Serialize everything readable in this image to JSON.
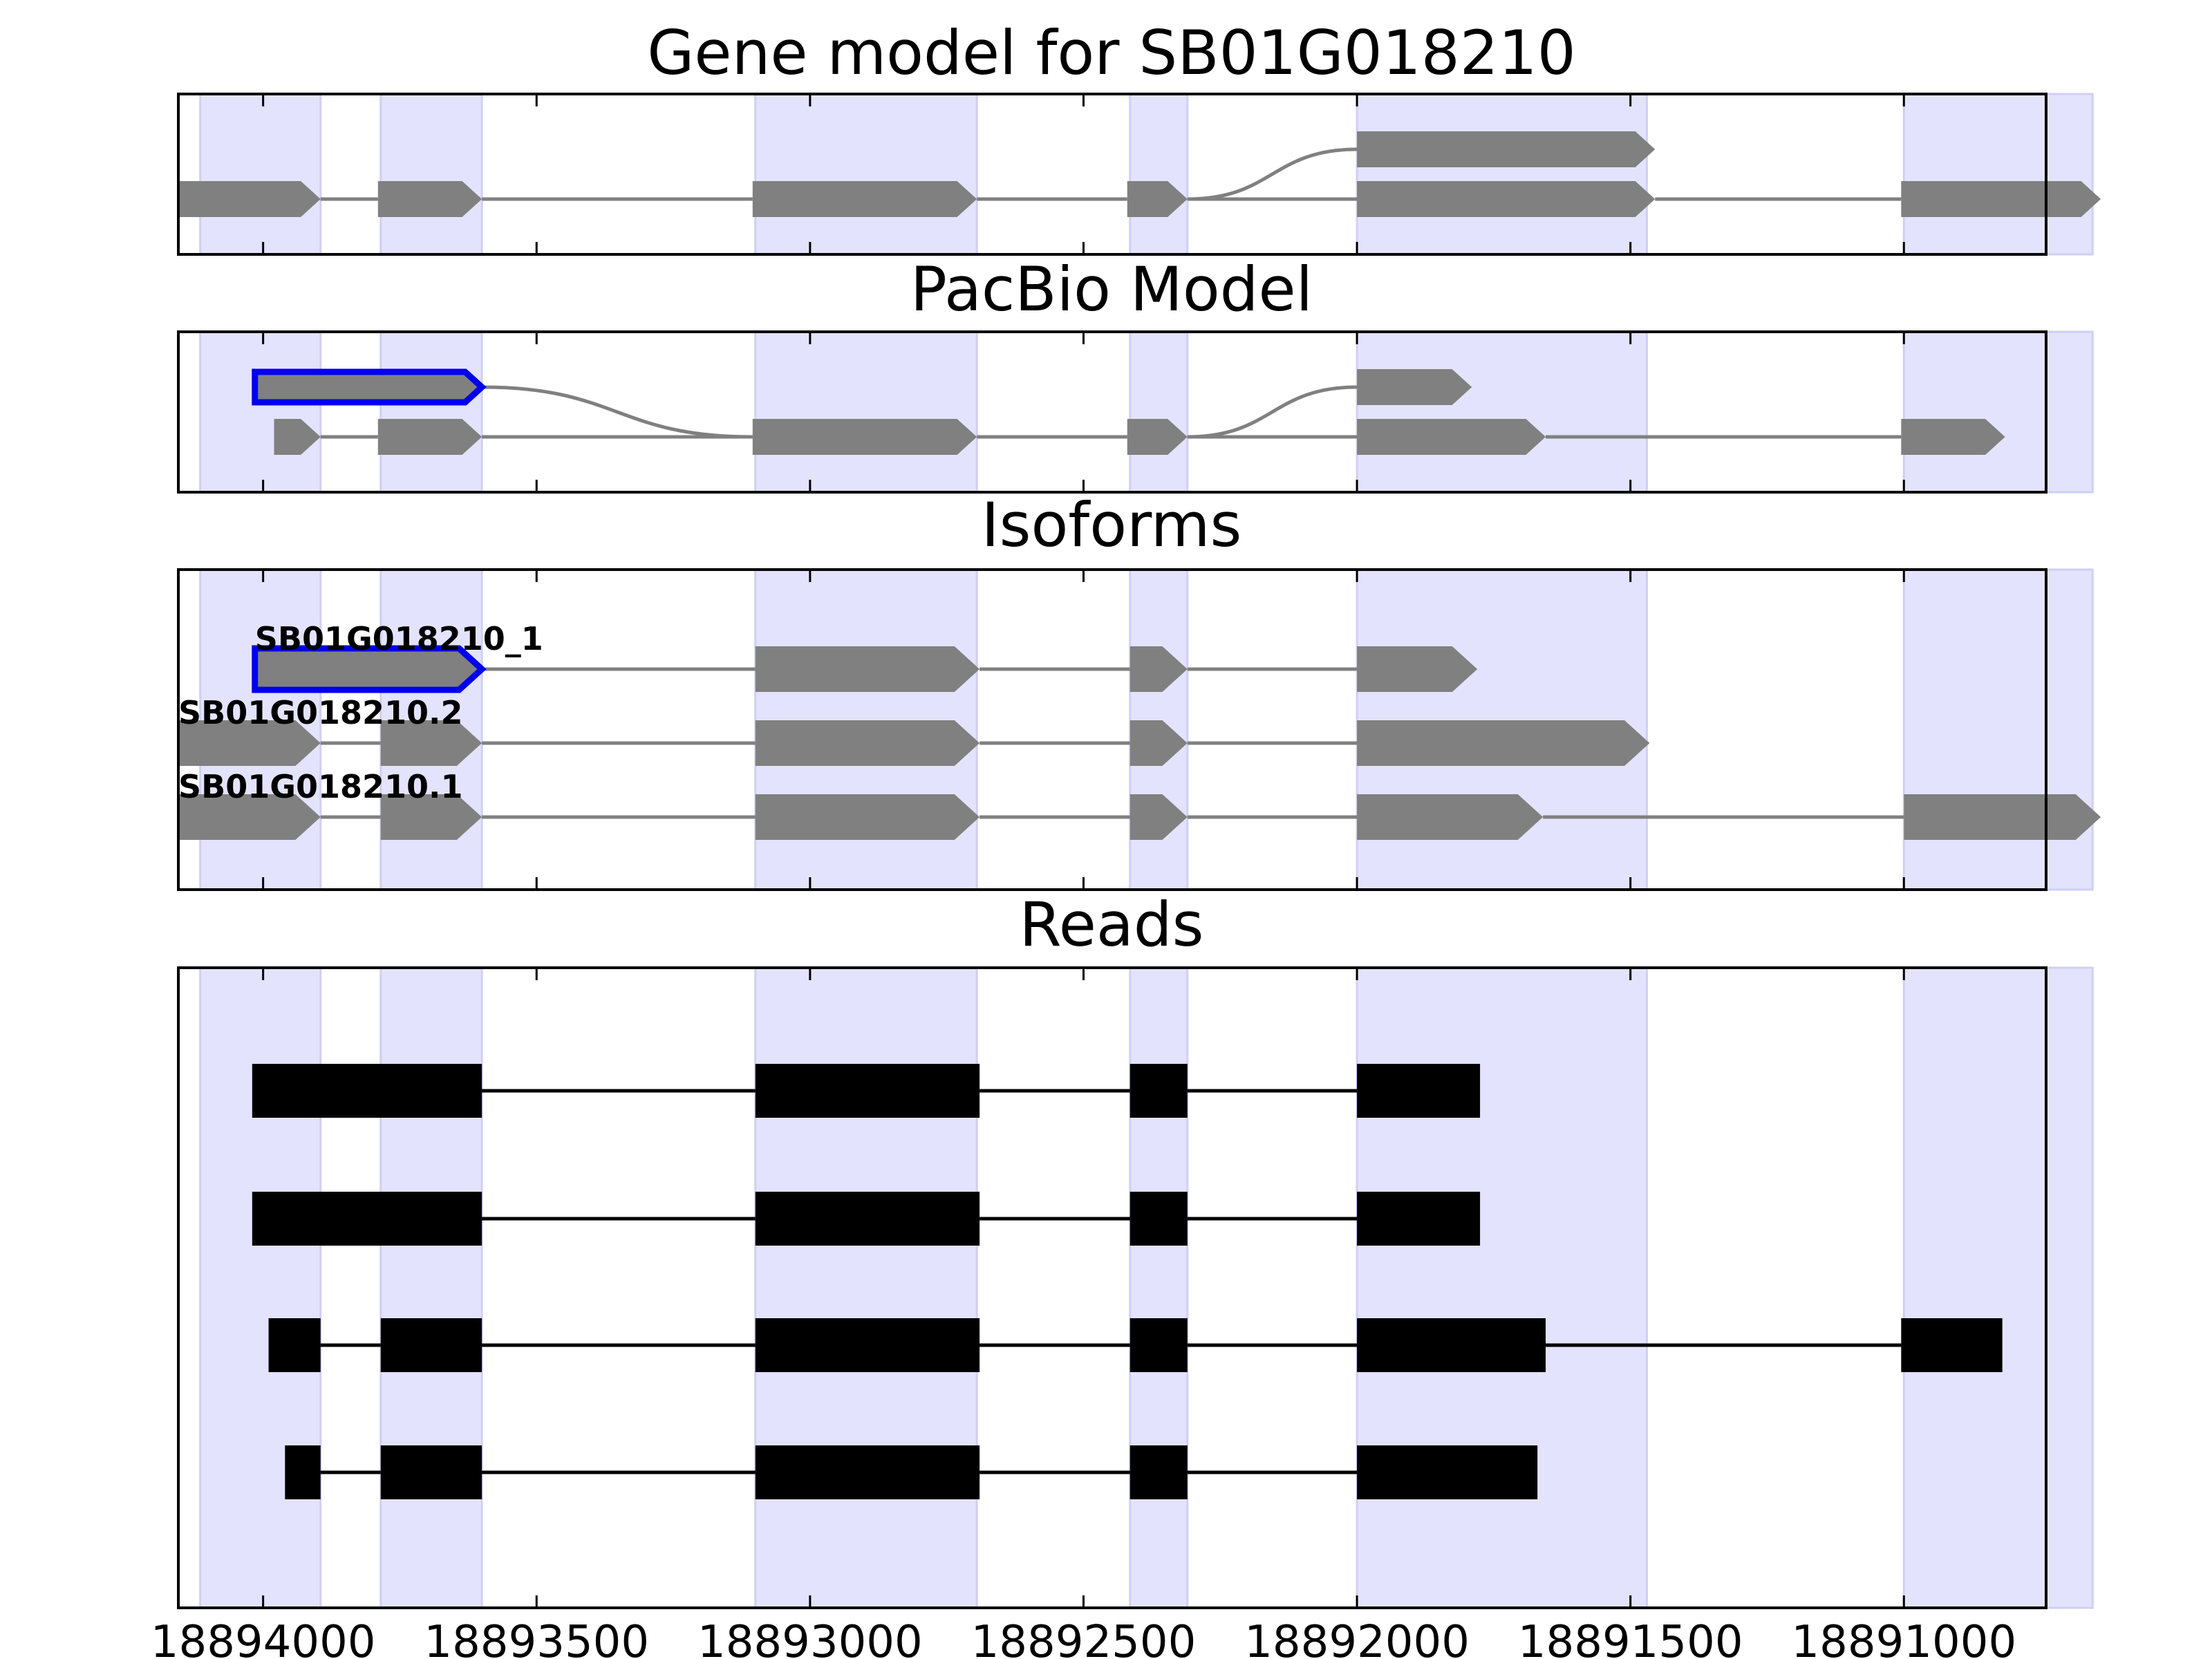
{
  "chart_data": {
    "type": "gene-model",
    "x_axis": {
      "reversed": true,
      "xlim": [
        18894155,
        18890740
      ],
      "ticks": [
        18894000,
        18893500,
        18893000,
        18892500,
        18892000,
        18891500,
        18891000
      ],
      "tick_labels": [
        "18894000",
        "18893500",
        "18893000",
        "18892500",
        "18892000",
        "18891500",
        "18891000"
      ]
    },
    "exon_regions": [
      [
        18894115,
        18893895
      ],
      [
        18893785,
        18893600
      ],
      [
        18893100,
        18892695
      ],
      [
        18892415,
        18892310
      ],
      [
        18892000,
        18891470
      ],
      [
        18891000,
        18890655
      ]
    ],
    "colors": {
      "region": "#e3e3fd",
      "region_edge": "#cfcff5",
      "exon": "#808080",
      "intron": "#808080",
      "highlight": "#0000ee",
      "read": "#000000"
    },
    "panels": [
      {
        "title": "Gene model for SB01G018210",
        "tracks": [
          {
            "exons": [
              [
                18894155,
                18893895
              ],
              [
                18893790,
                18893600
              ],
              [
                18893105,
                18892695
              ],
              [
                18892420,
                18892310
              ],
              [
                18892000,
                18891455
              ],
              [
                18891005,
                18890640
              ]
            ],
            "branch": {
              "from_exon": 3,
              "to_exon": 4,
              "exon": [
                18892000,
                18891455
              ]
            }
          }
        ]
      },
      {
        "title": "PacBio Model",
        "tracks": [
          {
            "exons": [
              [
                18893980,
                18893895
              ],
              [
                18893790,
                18893600
              ],
              [
                18893105,
                18892695
              ],
              [
                18892420,
                18892310
              ],
              [
                18892000,
                18891655
              ],
              [
                18891005,
                18890815
              ]
            ],
            "highlight": {
              "exon": [
                18894015,
                18893600
              ],
              "joins_exon": 2
            },
            "branch": {
              "from_exon": 3,
              "to_exon": 4,
              "exon": [
                18892000,
                18891790
              ]
            }
          }
        ]
      },
      {
        "title": "Isoforms",
        "tracks": [
          {
            "name": "SB01G018210_1",
            "exons": [
              [
                18894015,
                18893600
              ],
              [
                18893100,
                18892690
              ],
              [
                18892415,
                18892310
              ],
              [
                18892000,
                18891780
              ]
            ],
            "highlight_first": true
          },
          {
            "name": "SB01G018210.2",
            "exons": [
              [
                18894155,
                18893895
              ],
              [
                18893785,
                18893600
              ],
              [
                18893100,
                18892690
              ],
              [
                18892415,
                18892310
              ],
              [
                18892000,
                18891465
              ]
            ]
          },
          {
            "name": "SB01G018210.1",
            "exons": [
              [
                18894155,
                18893895
              ],
              [
                18893785,
                18893600
              ],
              [
                18893100,
                18892690
              ],
              [
                18892415,
                18892310
              ],
              [
                18892000,
                18891660
              ],
              [
                18891000,
                18890640
              ]
            ]
          }
        ]
      },
      {
        "title": "Reads",
        "reads": [
          [
            [
              18894020,
              18893600
            ],
            [
              18893100,
              18892690
            ],
            [
              18892415,
              18892310
            ],
            [
              18892000,
              18891775
            ]
          ],
          [
            [
              18894020,
              18893600
            ],
            [
              18893100,
              18892690
            ],
            [
              18892415,
              18892310
            ],
            [
              18892000,
              18891775
            ]
          ],
          [
            [
              18893990,
              18893895
            ],
            [
              18893785,
              18893600
            ],
            [
              18893100,
              18892690
            ],
            [
              18892415,
              18892310
            ],
            [
              18892000,
              18891655
            ],
            [
              18891005,
              18890820
            ]
          ],
          [
            [
              18893960,
              18893895
            ],
            [
              18893785,
              18893600
            ],
            [
              18893100,
              18892690
            ],
            [
              18892415,
              18892310
            ],
            [
              18892000,
              18891670
            ]
          ]
        ]
      }
    ]
  }
}
